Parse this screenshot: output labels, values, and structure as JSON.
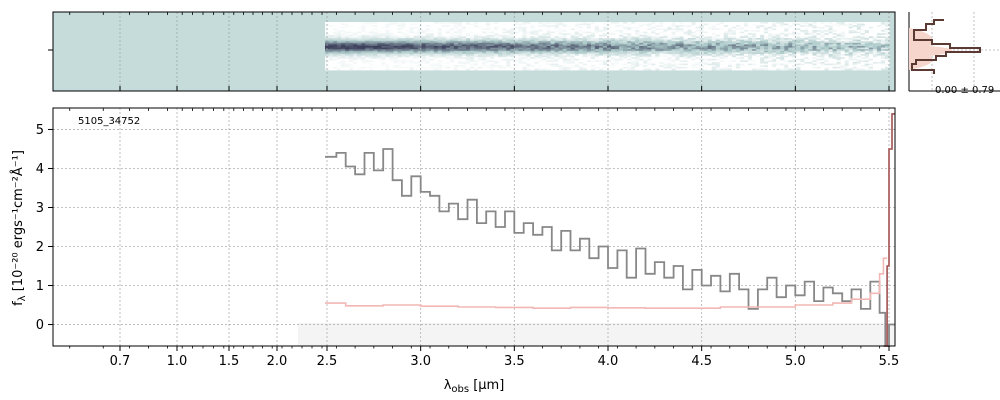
{
  "chart_data": {
    "type": "line",
    "title": "",
    "annotation": "5105_34752",
    "xlabel_main": "λ",
    "xlabel_sub": "obs",
    "xlabel_unit": " [μm]",
    "ylabel_prefix": "f",
    "ylabel_sub": "λ",
    "ylabel_rest": " [10⁻²⁰ ergs⁻¹cm⁻²Å⁻¹]",
    "x_scale": "spectral-pixel (nonlinear)",
    "xlim": [
      0.5,
      5.52
    ],
    "ylim": [
      -0.55,
      5.55
    ],
    "grid": true,
    "x_ticks": [
      {
        "value": 0.7,
        "label": "0.7"
      },
      {
        "value": 1.0,
        "label": "1.0"
      },
      {
        "value": 1.5,
        "label": "1.5"
      },
      {
        "value": 2.0,
        "label": "2.0"
      },
      {
        "value": 2.5,
        "label": "2.5"
      },
      {
        "value": 3.0,
        "label": "3.0"
      },
      {
        "value": 3.5,
        "label": "3.5"
      },
      {
        "value": 4.0,
        "label": "4.0"
      },
      {
        "value": 4.5,
        "label": "4.5"
      },
      {
        "value": 5.0,
        "label": "5.0"
      },
      {
        "value": 5.5,
        "label": "5.5"
      }
    ],
    "y_ticks": [
      {
        "value": 0,
        "label": "0"
      },
      {
        "value": 1,
        "label": "1"
      },
      {
        "value": 2,
        "label": "2"
      },
      {
        "value": 3,
        "label": "3"
      },
      {
        "value": 4,
        "label": "4"
      },
      {
        "value": 5,
        "label": "5"
      }
    ],
    "series": [
      {
        "color": "#888888",
        "style": "steps",
        "x": [
          2.48,
          2.55,
          2.6,
          2.65,
          2.7,
          2.75,
          2.8,
          2.85,
          2.9,
          2.95,
          3.0,
          3.05,
          3.1,
          3.15,
          3.2,
          3.25,
          3.3,
          3.35,
          3.4,
          3.45,
          3.5,
          3.55,
          3.6,
          3.65,
          3.7,
          3.75,
          3.8,
          3.85,
          3.9,
          3.95,
          4.0,
          4.05,
          4.1,
          4.15,
          4.2,
          4.25,
          4.3,
          4.35,
          4.4,
          4.45,
          4.5,
          4.55,
          4.6,
          4.65,
          4.7,
          4.75,
          4.8,
          4.85,
          4.9,
          4.95,
          5.0,
          5.05,
          5.1,
          5.15,
          5.2,
          5.25,
          5.3,
          5.35,
          5.4,
          5.45,
          5.48,
          5.5
        ],
        "y": [
          4.3,
          4.4,
          4.05,
          3.85,
          4.4,
          3.95,
          4.5,
          3.7,
          3.3,
          3.8,
          3.4,
          3.3,
          2.9,
          3.1,
          2.7,
          3.2,
          2.6,
          2.9,
          2.5,
          2.9,
          2.35,
          2.6,
          2.3,
          2.5,
          1.9,
          2.4,
          1.9,
          2.2,
          1.7,
          2.0,
          1.45,
          1.9,
          1.2,
          1.95,
          1.3,
          1.6,
          1.2,
          1.5,
          0.9,
          1.4,
          1.0,
          1.25,
          0.85,
          1.3,
          0.9,
          0.4,
          0.9,
          1.2,
          0.7,
          1.0,
          0.75,
          1.1,
          0.6,
          0.95,
          0.8,
          0.6,
          0.9,
          0.4,
          1.1,
          0.3,
          -0.55,
          0.0
        ]
      },
      {
        "color": "#f2b8b4",
        "style": "steps",
        "x": [
          2.48,
          2.6,
          2.8,
          3.0,
          3.2,
          3.4,
          3.6,
          3.8,
          4.0,
          4.2,
          4.4,
          4.6,
          4.8,
          5.0,
          5.2,
          5.3,
          5.4,
          5.45,
          5.47
        ],
        "y": [
          0.55,
          0.48,
          0.5,
          0.47,
          0.45,
          0.44,
          0.42,
          0.44,
          0.43,
          0.42,
          0.42,
          0.45,
          0.45,
          0.5,
          0.55,
          0.65,
          0.8,
          1.3,
          1.7
        ]
      },
      {
        "color": "#a05050",
        "style": "steps",
        "x": [
          5.47,
          5.49,
          5.5,
          5.51
        ],
        "y": [
          -0.55,
          1.5,
          4.5,
          5.4
        ]
      }
    ]
  },
  "inset": {
    "label": "0.00 ± 0.79"
  }
}
